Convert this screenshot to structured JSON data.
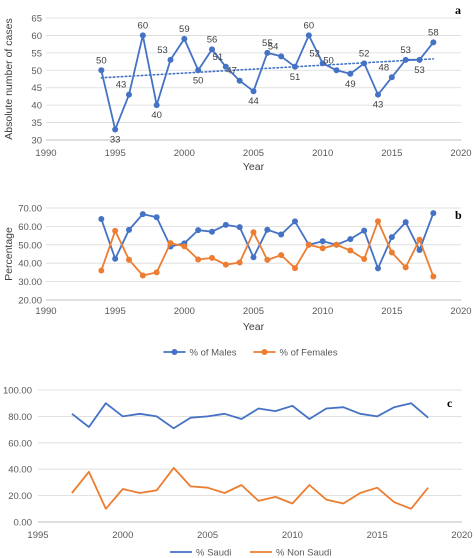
{
  "colors": {
    "blue": "#4472C4",
    "orange": "#ED7D31",
    "axis": "#BFBFBF",
    "grid": "#D9D9D9"
  },
  "chart_data": [
    {
      "id": "a",
      "panel_label": "a",
      "type": "line",
      "ylabel": "Absolute number of cases",
      "xlabel": "Year",
      "xlim": [
        1990,
        2020
      ],
      "ylim": [
        30,
        65
      ],
      "xticks": [
        "1990",
        "1995",
        "2000",
        "2005",
        "2010",
        "2015",
        "2020"
      ],
      "yticks": [
        "30",
        "35",
        "40",
        "45",
        "50",
        "55",
        "60",
        "65"
      ],
      "grid": true,
      "trendline": "dotted",
      "x": [
        1994,
        1995,
        1996,
        1997,
        1998,
        1999,
        2000,
        2001,
        2002,
        2003,
        2004,
        2005,
        2006,
        2007,
        2008,
        2009,
        2010,
        2011,
        2012,
        2013,
        2014,
        2015,
        2016,
        2017,
        2018
      ],
      "series": [
        {
          "values": [
            50,
            33,
            43,
            60,
            40,
            53,
            59,
            50,
            56,
            51,
            47,
            44,
            55,
            54,
            51,
            60,
            52,
            50,
            49,
            52,
            43,
            48,
            53,
            53,
            58
          ]
        }
      ],
      "data_labels": [
        "50",
        "33",
        "43",
        "60",
        "40",
        "53",
        "59",
        "50",
        "56",
        "51",
        "47",
        "44",
        "55",
        "54",
        "51",
        "60",
        "52",
        "50",
        "49",
        "52",
        "43",
        "48",
        "53",
        "53",
        "58"
      ]
    },
    {
      "id": "b",
      "panel_label": "b",
      "type": "line",
      "ylabel": "Percentage",
      "xlabel": "Year",
      "xlim": [
        1990,
        2020
      ],
      "ylim": [
        20,
        70
      ],
      "xticks": [
        "1990",
        "1995",
        "2000",
        "2005",
        "2010",
        "2015",
        "2020"
      ],
      "yticks": [
        "20.00",
        "30.00",
        "40.00",
        "50.00",
        "60.00",
        "70.00"
      ],
      "grid": true,
      "legend": "bottom",
      "x": [
        1994,
        1995,
        1996,
        1997,
        1998,
        1999,
        2000,
        2001,
        2002,
        2003,
        2004,
        2005,
        2006,
        2007,
        2008,
        2009,
        2010,
        2011,
        2012,
        2013,
        2014,
        2015,
        2016,
        2017,
        2018
      ],
      "series": [
        {
          "name": "% of Males",
          "values": [
            64.0,
            42.4,
            58.1,
            66.7,
            65.0,
            49.1,
            50.8,
            58.0,
            57.1,
            60.8,
            59.6,
            43.2,
            58.2,
            55.6,
            62.7,
            50.0,
            51.9,
            50.0,
            53.1,
            57.7,
            37.2,
            54.2,
            62.3,
            47.2,
            67.2
          ]
        },
        {
          "name": "% of Females",
          "values": [
            36.0,
            57.6,
            41.9,
            33.3,
            35.0,
            50.9,
            49.2,
            42.0,
            42.9,
            39.2,
            40.4,
            56.8,
            41.8,
            44.4,
            37.3,
            50.0,
            48.1,
            50.0,
            46.9,
            42.3,
            62.8,
            45.8,
            37.7,
            52.8,
            32.8
          ]
        }
      ]
    },
    {
      "id": "c",
      "panel_label": "c",
      "type": "line",
      "ylabel": "",
      "xlabel": "",
      "xlim": [
        1995,
        2020
      ],
      "ylim": [
        0,
        100
      ],
      "xticks": [
        "1995",
        "2000",
        "2005",
        "2010",
        "2015",
        "2020"
      ],
      "yticks": [
        "0.00",
        "20.00",
        "40.00",
        "60.00",
        "80.00",
        "100.00"
      ],
      "grid": true,
      "legend": "bottom",
      "x": [
        1997,
        1998,
        1999,
        2000,
        2001,
        2002,
        2003,
        2004,
        2005,
        2006,
        2007,
        2008,
        2009,
        2010,
        2011,
        2012,
        2013,
        2014,
        2015,
        2016,
        2017,
        2018
      ],
      "series": [
        {
          "name": "% Saudi",
          "values": [
            82,
            72,
            90,
            80,
            82,
            80,
            71,
            79,
            80,
            82,
            78,
            86,
            84,
            88,
            78,
            86,
            87,
            82,
            80,
            87,
            90,
            79
          ]
        },
        {
          "name": "% Non Saudi",
          "values": [
            22,
            38,
            10,
            25,
            22,
            24,
            41,
            27,
            26,
            22,
            28,
            16,
            19,
            14,
            28,
            17,
            14,
            22,
            26,
            15,
            10,
            26
          ]
        }
      ]
    }
  ]
}
